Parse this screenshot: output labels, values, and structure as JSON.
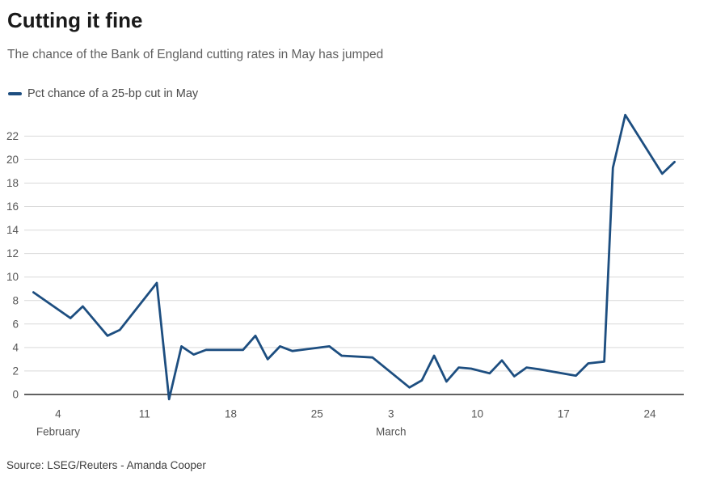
{
  "header": {
    "title": "Cutting it fine",
    "subtitle": "The chance of the Bank of England cutting rates in May has jumped"
  },
  "legend": {
    "label": "Pct chance of a 25-bp cut in May",
    "swatch_color": "#1d4e80"
  },
  "footer": {
    "source": "Source: LSEG/Reuters - Amanda Cooper"
  },
  "chart_data": {
    "type": "line",
    "title": "Cutting it fine",
    "subtitle": "The chance of the Bank of England cutting rates in May has jumped",
    "x_unit": "day offset within Feb-Mar period (1 = Feb 1)",
    "xlim": [
      1.25,
      54.75
    ],
    "ylim": [
      -1,
      24.4
    ],
    "grid": true,
    "legend_position": "top-left",
    "series": [
      {
        "name": "Pct chance of a 25-bp cut in May",
        "color": "#1d4e80",
        "points": [
          [
            2,
            8.7
          ],
          [
            5,
            6.5
          ],
          [
            6,
            7.5
          ],
          [
            8,
            5.0
          ],
          [
            9,
            5.5
          ],
          [
            12,
            9.5
          ],
          [
            13,
            -0.4
          ],
          [
            14,
            4.1
          ],
          [
            15,
            3.4
          ],
          [
            16,
            3.8
          ],
          [
            19,
            3.8
          ],
          [
            20,
            5.0
          ],
          [
            21,
            3.0
          ],
          [
            22,
            4.1
          ],
          [
            23,
            3.7
          ],
          [
            26,
            4.1
          ],
          [
            27,
            3.3
          ],
          [
            29.5,
            3.15
          ],
          [
            32.5,
            0.6
          ],
          [
            33.5,
            1.2
          ],
          [
            34.5,
            3.3
          ],
          [
            35.5,
            1.1
          ],
          [
            36.5,
            2.3
          ],
          [
            37.5,
            2.2
          ],
          [
            39,
            1.8
          ],
          [
            40,
            2.9
          ],
          [
            41,
            1.55
          ],
          [
            42,
            2.3
          ],
          [
            43,
            2.15
          ],
          [
            46,
            1.6
          ],
          [
            47,
            2.65
          ],
          [
            48.3,
            2.8
          ],
          [
            49,
            19.3
          ],
          [
            50,
            23.8
          ],
          [
            53,
            18.8
          ],
          [
            54,
            19.8
          ]
        ]
      }
    ],
    "x_ticks": [
      {
        "day": 4,
        "label": "4"
      },
      {
        "day": 11,
        "label": "11"
      },
      {
        "day": 18,
        "label": "18"
      },
      {
        "day": 25,
        "label": "25"
      },
      {
        "day": 31,
        "label": "3"
      },
      {
        "day": 38,
        "label": "10"
      },
      {
        "day": 45,
        "label": "17"
      },
      {
        "day": 52,
        "label": "24"
      }
    ],
    "x_month_labels": [
      {
        "day": 4,
        "label": "February"
      },
      {
        "day": 31,
        "label": "March"
      }
    ],
    "y_ticks": [
      0,
      2,
      4,
      6,
      8,
      10,
      12,
      14,
      16,
      18,
      20,
      22
    ],
    "colors": {
      "grid": "#d9d9d9",
      "axis": "#1a1a1a",
      "tick_labels": "#565656"
    }
  }
}
